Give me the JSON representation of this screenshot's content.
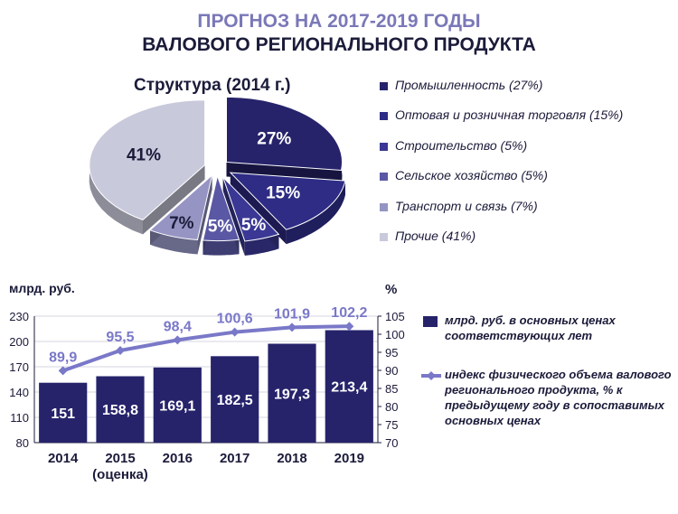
{
  "title_line1": "ПРОГНОЗ НА 2017-2019 ГОДЫ",
  "title_line2": "ВАЛОВОГО РЕГИОНАЛЬНОГО ПРОДУКТА",
  "chart_data": [
    {
      "type": "pie",
      "title": "Структура (2014 г.)",
      "slices": [
        {
          "label": "Промышленность (27%)",
          "value": 27,
          "display": "27%",
          "color": "#26236b"
        },
        {
          "label": "Оптовая и розничная торговля (15%)",
          "value": 15,
          "display": "15%",
          "color": "#2e2c85"
        },
        {
          "label": "Строительство (5%)",
          "value": 5,
          "display": "5%",
          "color": "#3a3894"
        },
        {
          "label": "Сельское хозяйство (5%)",
          "value": 5,
          "display": "5%",
          "color": "#5a58a4"
        },
        {
          "label": "Транспорт и связь (7%)",
          "value": 7,
          "display": "7%",
          "color": "#9594c3"
        },
        {
          "label": "Прочие (41%)",
          "value": 41,
          "display": "41%",
          "color": "#c9c9dc"
        }
      ],
      "legend_position": "right"
    },
    {
      "type": "bar+line",
      "categories": [
        "2014",
        "2015",
        "2016",
        "2017",
        "2018",
        "2019"
      ],
      "category_sublabels": [
        "",
        "(оценка)",
        "",
        "",
        "",
        ""
      ],
      "series": [
        {
          "name": "млрд. руб. в основных ценах соответствующих лет",
          "type": "bar",
          "axis": "left",
          "values": [
            151,
            158.8,
            169.1,
            182.5,
            197.3,
            213.4
          ],
          "labels": [
            "151",
            "158,8",
            "169,1",
            "182,5",
            "197,3",
            "213,4"
          ],
          "color": "#26236b"
        },
        {
          "name": "индекс физического объема валового регионального продукта, % к предыдущему году в сопоставимых основных ценах",
          "type": "line",
          "axis": "right",
          "values": [
            89.9,
            95.5,
            98.4,
            100.6,
            101.9,
            102.2
          ],
          "labels": [
            "89,9",
            "95,5",
            "98,4",
            "100,6",
            "101,9",
            "102,2"
          ],
          "color": "#7a78c8"
        }
      ],
      "y_left": {
        "label": "млрд. руб.",
        "ticks": [
          "80",
          "110",
          "140",
          "170",
          "200",
          "230"
        ],
        "range": [
          80,
          230
        ]
      },
      "y_right": {
        "label": "%",
        "ticks": [
          "70",
          "75",
          "80",
          "85",
          "90",
          "95",
          "100",
          "105"
        ],
        "range": [
          70,
          105
        ]
      },
      "legend_position": "right"
    }
  ]
}
